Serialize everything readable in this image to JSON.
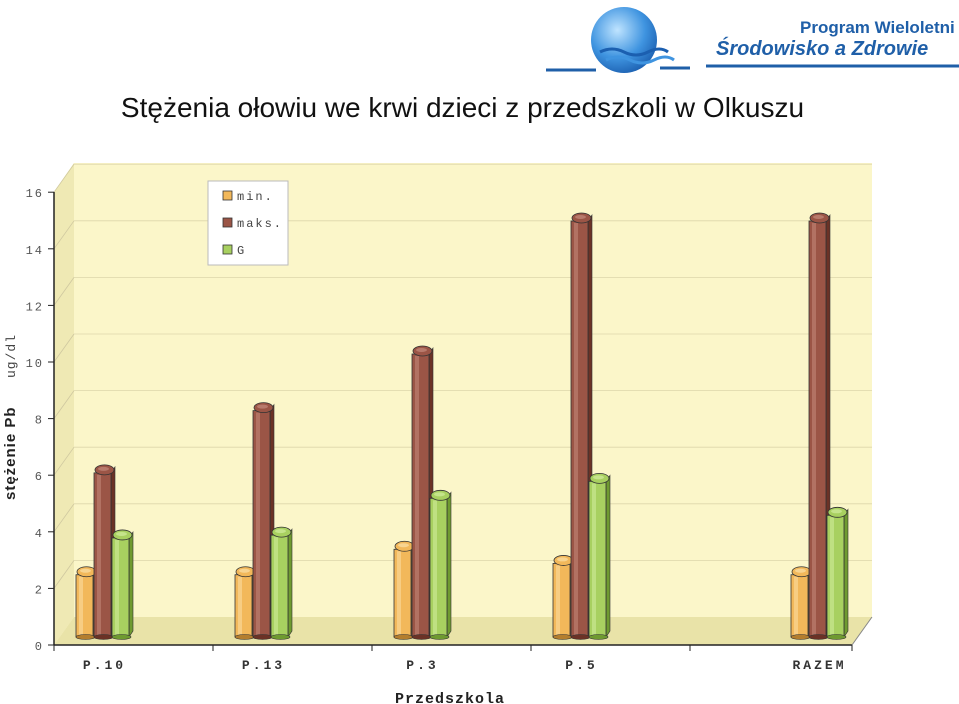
{
  "brand": {
    "line1": "Program Wieloletni",
    "line2": "Środowisko a Zdrowie"
  },
  "title": "Stężenia ołowiu we krwi dzieci z przedszkoli w Olkuszu",
  "colors": {
    "min": "#f2b85a",
    "max": "#9b5546",
    "g": "#a8d060",
    "wall": "#fbf6c9",
    "brand": "#1f5fa8"
  },
  "chart_data": {
    "type": "bar",
    "categories": [
      "P.10",
      "P.13",
      "P.3",
      "P.5",
      "RAZEM"
    ],
    "series": [
      {
        "name": "min.",
        "values": [
          2.2,
          2.2,
          3.1,
          2.6,
          2.2
        ]
      },
      {
        "name": "maks.",
        "values": [
          5.8,
          8.0,
          10.0,
          14.7,
          14.7
        ]
      },
      {
        "name": "G",
        "values": [
          3.5,
          3.6,
          4.9,
          5.5,
          4.3
        ]
      }
    ],
    "ylim": [
      0,
      16
    ],
    "yticks": [
      0,
      2,
      4,
      6,
      8,
      10,
      12,
      14,
      16
    ],
    "xlabel": "Przedszkola",
    "ylabel_bold": "stężenie Pb",
    "ylabel_unit": "ug/dl",
    "legend": "top-left",
    "grid": true
  }
}
